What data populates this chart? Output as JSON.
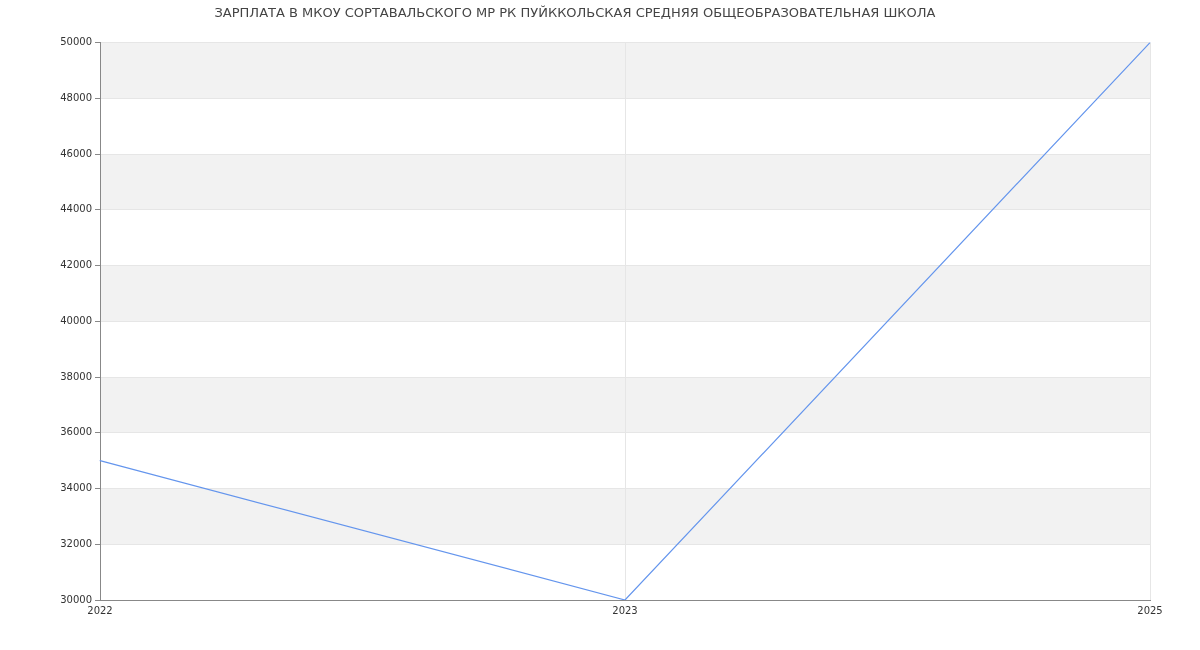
{
  "chart_data": {
    "type": "line",
    "title": "ЗАРПЛАТА В МКОУ СОРТАВАЛЬСКОГО МР РК ПУЙККОЛЬСКАЯ СРЕДНЯЯ ОБЩЕОБРАЗОВАТЕЛЬНАЯ ШКОЛА",
    "categories": [
      "2022",
      "2023",
      "2025"
    ],
    "series": [
      {
        "color": "#6495ed",
        "values": [
          35000,
          30000,
          50000
        ]
      }
    ],
    "ylim": [
      30000,
      50000
    ],
    "yticks": [
      30000,
      32000,
      34000,
      36000,
      38000,
      40000,
      42000,
      44000,
      46000,
      48000,
      50000
    ],
    "grid": true,
    "legend": false,
    "marker": "none",
    "line_style": "solid"
  }
}
